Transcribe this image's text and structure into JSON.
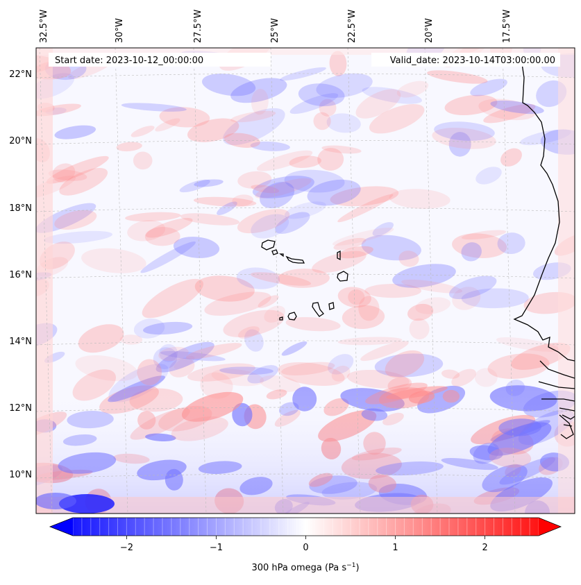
{
  "map": {
    "start_date": "Start date: 2023-10-12_00:00:00",
    "valid_date": "Valid_date: 2023-10-14T03:00:00.00",
    "longitude_labels": [
      "32.5°W",
      "30°W",
      "27.5°W",
      "25°W",
      "22.5°W",
      "20°W",
      "17.5°W"
    ],
    "latitude_labels": [
      "22°N",
      "20°N",
      "18°N",
      "16°N",
      "14°N",
      "12°N",
      "10°N"
    ],
    "field": "300 hPa omega",
    "islands": [
      "Santo Antão",
      "São Vicente",
      "Santa Luzia",
      "São Nicolau",
      "Sal",
      "Boa Vista",
      "Maio",
      "Santiago",
      "Fogo",
      "Brava"
    ]
  },
  "colorbar": {
    "label": "300 hPa omega (Pa s",
    "label_sup": "−1",
    "label_end": ")",
    "ticks": [
      "−2",
      "−1",
      "0",
      "1",
      "2"
    ],
    "tick_values": [
      -2,
      -1,
      0,
      1,
      2
    ],
    "min": -2.6,
    "max": 2.6,
    "low_color": "#0000ff",
    "mid_color": "#ffffff",
    "high_color": "#ff0000"
  }
}
